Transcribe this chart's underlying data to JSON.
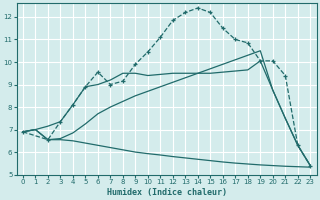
{
  "xlabel": "Humidex (Indice chaleur)",
  "xlim": [
    -0.5,
    23.5
  ],
  "ylim": [
    5,
    12.6
  ],
  "yticks": [
    5,
    6,
    7,
    8,
    9,
    10,
    11,
    12
  ],
  "xticks": [
    0,
    1,
    2,
    3,
    4,
    5,
    6,
    7,
    8,
    9,
    10,
    11,
    12,
    13,
    14,
    15,
    16,
    17,
    18,
    19,
    20,
    21,
    22,
    23
  ],
  "bg_color": "#d4ecec",
  "grid_color": "#ffffff",
  "line_color": "#216b6b",
  "curve1_x": [
    0,
    1,
    2,
    3,
    4,
    5,
    6,
    7,
    8,
    9,
    10,
    11,
    12,
    13,
    14,
    15,
    16,
    17,
    18,
    19,
    20,
    21,
    22,
    23
  ],
  "curve1_y": [
    6.9,
    7.0,
    6.55,
    6.55,
    6.5,
    6.4,
    6.3,
    6.2,
    6.1,
    6.0,
    5.93,
    5.87,
    5.8,
    5.74,
    5.68,
    5.62,
    5.56,
    5.51,
    5.47,
    5.43,
    5.4,
    5.37,
    5.35,
    5.33
  ],
  "curve2_x": [
    0,
    1,
    2,
    3,
    4,
    5,
    6,
    7,
    8,
    9,
    10,
    11,
    12,
    13,
    14,
    15,
    16,
    17,
    18,
    19,
    20,
    21,
    22,
    23
  ],
  "curve2_y": [
    6.9,
    7.0,
    6.55,
    6.6,
    6.85,
    7.25,
    7.7,
    8.0,
    8.25,
    8.5,
    8.7,
    8.9,
    9.1,
    9.3,
    9.5,
    9.7,
    9.9,
    10.1,
    10.3,
    10.5,
    8.75,
    7.5,
    6.3,
    5.4
  ],
  "curve3_x": [
    0,
    1,
    2,
    3,
    4,
    5,
    6,
    7,
    8,
    9,
    10,
    11,
    12,
    13,
    14,
    15,
    16,
    17,
    18,
    19,
    20,
    21,
    22,
    23
  ],
  "curve3_y": [
    6.9,
    7.0,
    7.15,
    7.35,
    8.1,
    8.9,
    9.0,
    9.2,
    9.5,
    9.5,
    9.4,
    9.45,
    9.5,
    9.5,
    9.5,
    9.5,
    9.55,
    9.6,
    9.65,
    10.05,
    8.75,
    7.5,
    6.3,
    5.4
  ],
  "curve4_x": [
    0,
    2,
    3,
    4,
    5,
    6,
    7,
    8,
    9,
    10,
    11,
    12,
    13,
    14,
    15,
    16,
    17,
    18,
    19,
    20,
    21,
    22,
    23
  ],
  "curve4_y": [
    6.9,
    6.55,
    7.35,
    8.1,
    8.9,
    9.55,
    9.0,
    9.15,
    9.9,
    10.45,
    11.1,
    11.85,
    12.2,
    12.4,
    12.2,
    11.5,
    11.0,
    10.85,
    10.05,
    10.05,
    9.4,
    6.3,
    5.4
  ]
}
